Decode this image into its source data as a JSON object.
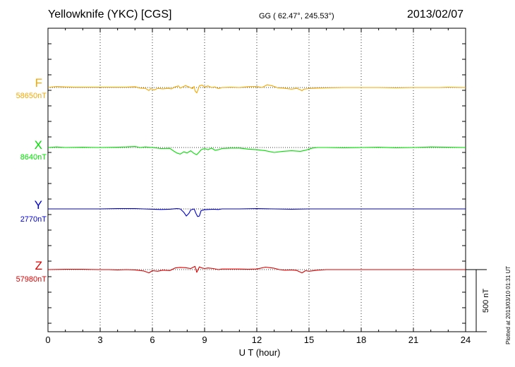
{
  "header": {
    "station": "Yellowknife (YKC)  [CGS]",
    "coords": "GG ( 62.47°, 245.53°)",
    "date": "2013/02/07"
  },
  "footer": {
    "plotted": "Plotted at 2013/03/10 01:31  UT",
    "scale_label": "500 nT"
  },
  "colors": {
    "F": "#f5a800",
    "X": "#00e000",
    "Y": "#0000cc",
    "Z": "#e00000",
    "grid": "#000000"
  },
  "chart_data": {
    "type": "line",
    "xlabel": "U T (hour)",
    "xlim": [
      0,
      24
    ],
    "xticks": [
      "0",
      "3",
      "6",
      "9",
      "12",
      "15",
      "18",
      "21",
      "24"
    ],
    "scale_nT": 500,
    "series": [
      {
        "name": "F",
        "baseline": "58650nT",
        "points": [
          [
            0,
            0
          ],
          [
            0.5,
            -20
          ],
          [
            1,
            -10
          ],
          [
            1.5,
            -5
          ],
          [
            2,
            -5
          ],
          [
            3,
            -5
          ],
          [
            4,
            -5
          ],
          [
            4.5,
            -5
          ],
          [
            5,
            -15
          ],
          [
            5.3,
            10
          ],
          [
            5.6,
            15
          ],
          [
            5.8,
            55
          ],
          [
            5.9,
            20
          ],
          [
            6.1,
            45
          ],
          [
            6.3,
            15
          ],
          [
            6.6,
            25
          ],
          [
            6.9,
            15
          ],
          [
            7.1,
            25
          ],
          [
            7.3,
            -10
          ],
          [
            7.5,
            -30
          ],
          [
            7.6,
            10
          ],
          [
            7.8,
            -20
          ],
          [
            7.9,
            -35
          ],
          [
            8.1,
            -10
          ],
          [
            8.3,
            20
          ],
          [
            8.4,
            -20
          ],
          [
            8.45,
            60
          ],
          [
            8.55,
            100
          ],
          [
            8.6,
            60
          ],
          [
            8.7,
            -30
          ],
          [
            8.85,
            -45
          ],
          [
            9.0,
            -10
          ],
          [
            9.2,
            -30
          ],
          [
            9.4,
            0
          ],
          [
            9.6,
            -10
          ],
          [
            9.8,
            20
          ],
          [
            10.0,
            0
          ],
          [
            10.5,
            -5
          ],
          [
            11.0,
            0
          ],
          [
            11.5,
            -15
          ],
          [
            12.0,
            -20
          ],
          [
            12.3,
            0
          ],
          [
            12.6,
            -50
          ],
          [
            12.9,
            -30
          ],
          [
            13.2,
            5
          ],
          [
            13.5,
            10
          ],
          [
            14.0,
            30
          ],
          [
            14.3,
            15
          ],
          [
            14.5,
            40
          ],
          [
            14.6,
            60
          ],
          [
            14.7,
            30
          ],
          [
            15.0,
            20
          ],
          [
            15.5,
            10
          ],
          [
            16,
            5
          ],
          [
            17,
            0
          ],
          [
            18,
            0
          ],
          [
            19,
            0
          ],
          [
            20,
            5
          ],
          [
            21,
            0
          ],
          [
            22,
            0
          ],
          [
            22.5,
            0
          ],
          [
            23,
            -5
          ],
          [
            24,
            0
          ]
        ]
      },
      {
        "name": "X",
        "baseline": "8640nT",
        "points": [
          [
            0,
            0
          ],
          [
            0.5,
            -10
          ],
          [
            1,
            0
          ],
          [
            2,
            -5
          ],
          [
            3,
            0
          ],
          [
            4,
            -5
          ],
          [
            4.5,
            -10
          ],
          [
            5,
            -20
          ],
          [
            5.3,
            0
          ],
          [
            5.6,
            -10
          ],
          [
            6.0,
            0
          ],
          [
            6.5,
            20
          ],
          [
            7.0,
            15
          ],
          [
            7.2,
            60
          ],
          [
            7.4,
            100
          ],
          [
            7.6,
            120
          ],
          [
            7.8,
            80
          ],
          [
            8.0,
            100
          ],
          [
            8.2,
            60
          ],
          [
            8.4,
            110
          ],
          [
            8.55,
            130
          ],
          [
            8.7,
            80
          ],
          [
            8.8,
            40
          ],
          [
            9.0,
            20
          ],
          [
            9.2,
            40
          ],
          [
            9.4,
            10
          ],
          [
            9.6,
            50
          ],
          [
            9.8,
            40
          ],
          [
            10.0,
            20
          ],
          [
            10.5,
            10
          ],
          [
            11.0,
            10
          ],
          [
            11.5,
            30
          ],
          [
            12.0,
            40
          ],
          [
            12.5,
            60
          ],
          [
            13.0,
            90
          ],
          [
            13.5,
            70
          ],
          [
            14.0,
            60
          ],
          [
            14.5,
            70
          ],
          [
            14.8,
            50
          ],
          [
            15.0,
            30
          ],
          [
            15.2,
            10
          ],
          [
            15.5,
            0
          ],
          [
            16,
            0
          ],
          [
            17,
            5
          ],
          [
            18,
            0
          ],
          [
            19,
            -5
          ],
          [
            20,
            5
          ],
          [
            21,
            0
          ],
          [
            22,
            -10
          ],
          [
            23,
            -5
          ],
          [
            24,
            0
          ]
        ]
      },
      {
        "name": "Y",
        "baseline": "2770nT",
        "points": [
          [
            0,
            0
          ],
          [
            1,
            0
          ],
          [
            2,
            0
          ],
          [
            3,
            0
          ],
          [
            4,
            -5
          ],
          [
            4.5,
            -5
          ],
          [
            5,
            -5
          ],
          [
            5.5,
            0
          ],
          [
            6.0,
            5
          ],
          [
            6.5,
            10
          ],
          [
            7.0,
            5
          ],
          [
            7.4,
            -5
          ],
          [
            7.6,
            0
          ],
          [
            7.8,
            60
          ],
          [
            7.95,
            130
          ],
          [
            8.1,
            80
          ],
          [
            8.2,
            20
          ],
          [
            8.4,
            0
          ],
          [
            8.5,
            80
          ],
          [
            8.6,
            140
          ],
          [
            8.7,
            130
          ],
          [
            8.8,
            30
          ],
          [
            9.0,
            15
          ],
          [
            9.2,
            10
          ],
          [
            9.5,
            5
          ],
          [
            9.8,
            10
          ],
          [
            10.0,
            0
          ],
          [
            11,
            0
          ],
          [
            12,
            -5
          ],
          [
            13,
            0
          ],
          [
            14,
            5
          ],
          [
            15,
            0
          ],
          [
            16,
            0
          ],
          [
            17,
            0
          ],
          [
            18,
            0
          ],
          [
            19,
            0
          ],
          [
            20,
            0
          ],
          [
            21,
            0
          ],
          [
            22,
            0
          ],
          [
            23,
            0
          ],
          [
            24,
            0
          ]
        ]
      },
      {
        "name": "Z",
        "baseline": "57980nT",
        "points": [
          [
            0,
            0
          ],
          [
            1,
            -5
          ],
          [
            2,
            -5
          ],
          [
            3,
            0
          ],
          [
            3.5,
            0
          ],
          [
            4,
            5
          ],
          [
            4.5,
            0
          ],
          [
            5,
            5
          ],
          [
            5.5,
            25
          ],
          [
            5.8,
            60
          ],
          [
            6.0,
            20
          ],
          [
            6.3,
            30
          ],
          [
            6.6,
            10
          ],
          [
            7.0,
            20
          ],
          [
            7.3,
            -30
          ],
          [
            7.6,
            -40
          ],
          [
            7.9,
            -35
          ],
          [
            8.2,
            -20
          ],
          [
            8.45,
            -60
          ],
          [
            8.55,
            50
          ],
          [
            8.7,
            -50
          ],
          [
            8.85,
            -30
          ],
          [
            9.0,
            -20
          ],
          [
            9.2,
            -30
          ],
          [
            9.5,
            -20
          ],
          [
            9.8,
            0
          ],
          [
            10.0,
            -10
          ],
          [
            11.0,
            -10
          ],
          [
            11.5,
            -5
          ],
          [
            12.0,
            -10
          ],
          [
            12.5,
            -45
          ],
          [
            13.0,
            -25
          ],
          [
            13.3,
            0
          ],
          [
            13.6,
            10
          ],
          [
            14.0,
            5
          ],
          [
            14.3,
            15
          ],
          [
            14.6,
            60
          ],
          [
            14.8,
            20
          ],
          [
            15.0,
            30
          ],
          [
            15.5,
            10
          ],
          [
            16,
            0
          ],
          [
            17,
            0
          ],
          [
            18,
            0
          ],
          [
            19,
            0
          ],
          [
            20,
            0
          ],
          [
            21,
            0
          ],
          [
            22,
            0
          ],
          [
            23,
            0
          ],
          [
            24,
            0
          ]
        ]
      }
    ]
  }
}
